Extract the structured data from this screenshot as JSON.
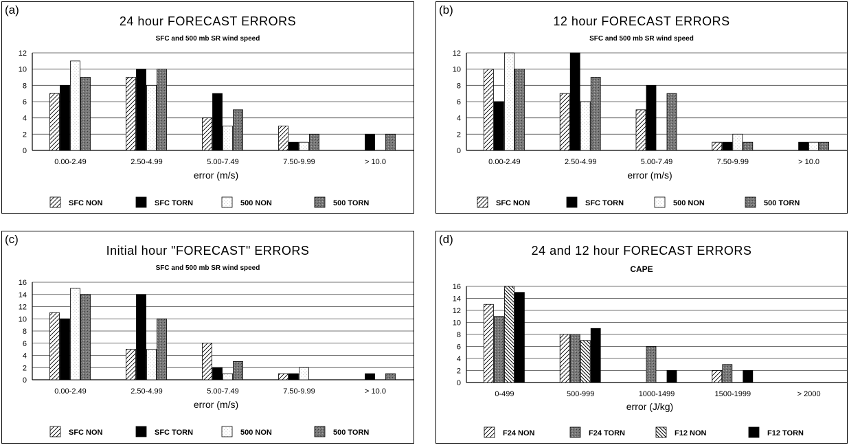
{
  "patterns": {
    "diag-fwd": "hatch-fwd",
    "black": "#000000",
    "dotted-white": "dots-light",
    "gray-stipple": "stipple-gray",
    "diag-back": "hatch-back"
  },
  "chart_data": [
    {
      "panel_label": "(a)",
      "type": "bar",
      "title": "24 hour FORECAST ERRORS",
      "subtitle": "SFC and 500 mb SR wind speed",
      "xlabel": "error (m/s)",
      "ylabel": "",
      "ylim": [
        0,
        12
      ],
      "yticks": [
        "0",
        "2",
        "4",
        "6",
        "8",
        "10",
        "12"
      ],
      "grid": true,
      "legend_position": "bottom",
      "categories": [
        "0.00-2.49",
        "2.50-4.99",
        "5.00-7.49",
        "7.50-9.99",
        "> 10.0"
      ],
      "series": [
        {
          "name": "SFC NON",
          "pattern": "diag-fwd",
          "values": [
            7,
            9,
            4,
            3,
            0
          ]
        },
        {
          "name": "SFC TORN",
          "pattern": "black",
          "values": [
            8,
            10,
            7,
            1,
            2
          ]
        },
        {
          "name": "500 NON",
          "pattern": "dotted-white",
          "values": [
            11,
            8,
            3,
            1,
            0
          ]
        },
        {
          "name": "500 TORN",
          "pattern": "gray-stipple",
          "values": [
            9,
            10,
            5,
            2,
            2
          ]
        }
      ]
    },
    {
      "panel_label": "(b)",
      "type": "bar",
      "title": "12 hour FORECAST ERRORS",
      "subtitle": "SFC and 500 mb SR wind speed",
      "xlabel": "error (m/s)",
      "ylabel": "",
      "ylim": [
        0,
        12
      ],
      "yticks": [
        "0",
        "2",
        "4",
        "6",
        "8",
        "10",
        "12"
      ],
      "grid": true,
      "legend_position": "bottom",
      "categories": [
        "0.00-2.49",
        "2.50-4.99",
        "5.00-7.49",
        "7.50-9.99",
        "> 10.0"
      ],
      "series": [
        {
          "name": "SFC NON",
          "pattern": "diag-fwd",
          "values": [
            10,
            7,
            5,
            1,
            0
          ]
        },
        {
          "name": "SFC TORN",
          "pattern": "black",
          "values": [
            6,
            12,
            8,
            1,
            1
          ]
        },
        {
          "name": "500 NON",
          "pattern": "dotted-white",
          "values": [
            12,
            6,
            0,
            2,
            1
          ]
        },
        {
          "name": "500 TORN",
          "pattern": "gray-stipple",
          "values": [
            10,
            9,
            7,
            1,
            1
          ]
        }
      ]
    },
    {
      "panel_label": "(c)",
      "type": "bar",
      "title": "Initial hour \"FORECAST\" ERRORS",
      "subtitle": "SFC and 500 mb SR wind speed",
      "xlabel": "error (m/s)",
      "ylabel": "",
      "ylim": [
        0,
        16
      ],
      "yticks": [
        "0",
        "2",
        "4",
        "6",
        "8",
        "10",
        "12",
        "14",
        "16"
      ],
      "grid": true,
      "legend_position": "bottom",
      "categories": [
        "0.00-2.49",
        "2.50-4.99",
        "5.00-7.49",
        "7.50-9.99",
        "> 10.0"
      ],
      "series": [
        {
          "name": "SFC NON",
          "pattern": "diag-fwd",
          "values": [
            11,
            5,
            6,
            1,
            0
          ]
        },
        {
          "name": "SFC TORN",
          "pattern": "black",
          "values": [
            10,
            14,
            2,
            1,
            1
          ]
        },
        {
          "name": "500 NON",
          "pattern": "dotted-white",
          "values": [
            15,
            5,
            1,
            2,
            0
          ]
        },
        {
          "name": "500 TORN",
          "pattern": "gray-stipple",
          "values": [
            14,
            10,
            3,
            0,
            1
          ]
        }
      ]
    },
    {
      "panel_label": "(d)",
      "type": "bar",
      "title": "24 and 12 hour FORECAST ERRORS",
      "subtitle": "CAPE",
      "xlabel": "error (J/kg)",
      "ylabel": "",
      "ylim": [
        0,
        16
      ],
      "yticks": [
        "0",
        "2",
        "4",
        "6",
        "8",
        "10",
        "12",
        "14",
        "16"
      ],
      "grid": true,
      "legend_position": "bottom",
      "categories": [
        "0-499",
        "500-999",
        "1000-1499",
        "1500-1999",
        "> 2000"
      ],
      "series": [
        {
          "name": "F24 NON",
          "pattern": "diag-fwd",
          "values": [
            13,
            8,
            0,
            2,
            0
          ]
        },
        {
          "name": "F24 TORN",
          "pattern": "gray-stipple",
          "values": [
            11,
            8,
            6,
            3,
            0
          ]
        },
        {
          "name": "F12 NON",
          "pattern": "diag-back",
          "values": [
            16,
            7,
            0,
            0,
            0
          ]
        },
        {
          "name": "F12 TORN",
          "pattern": "black",
          "values": [
            15,
            9,
            2,
            2,
            0
          ]
        }
      ]
    }
  ]
}
